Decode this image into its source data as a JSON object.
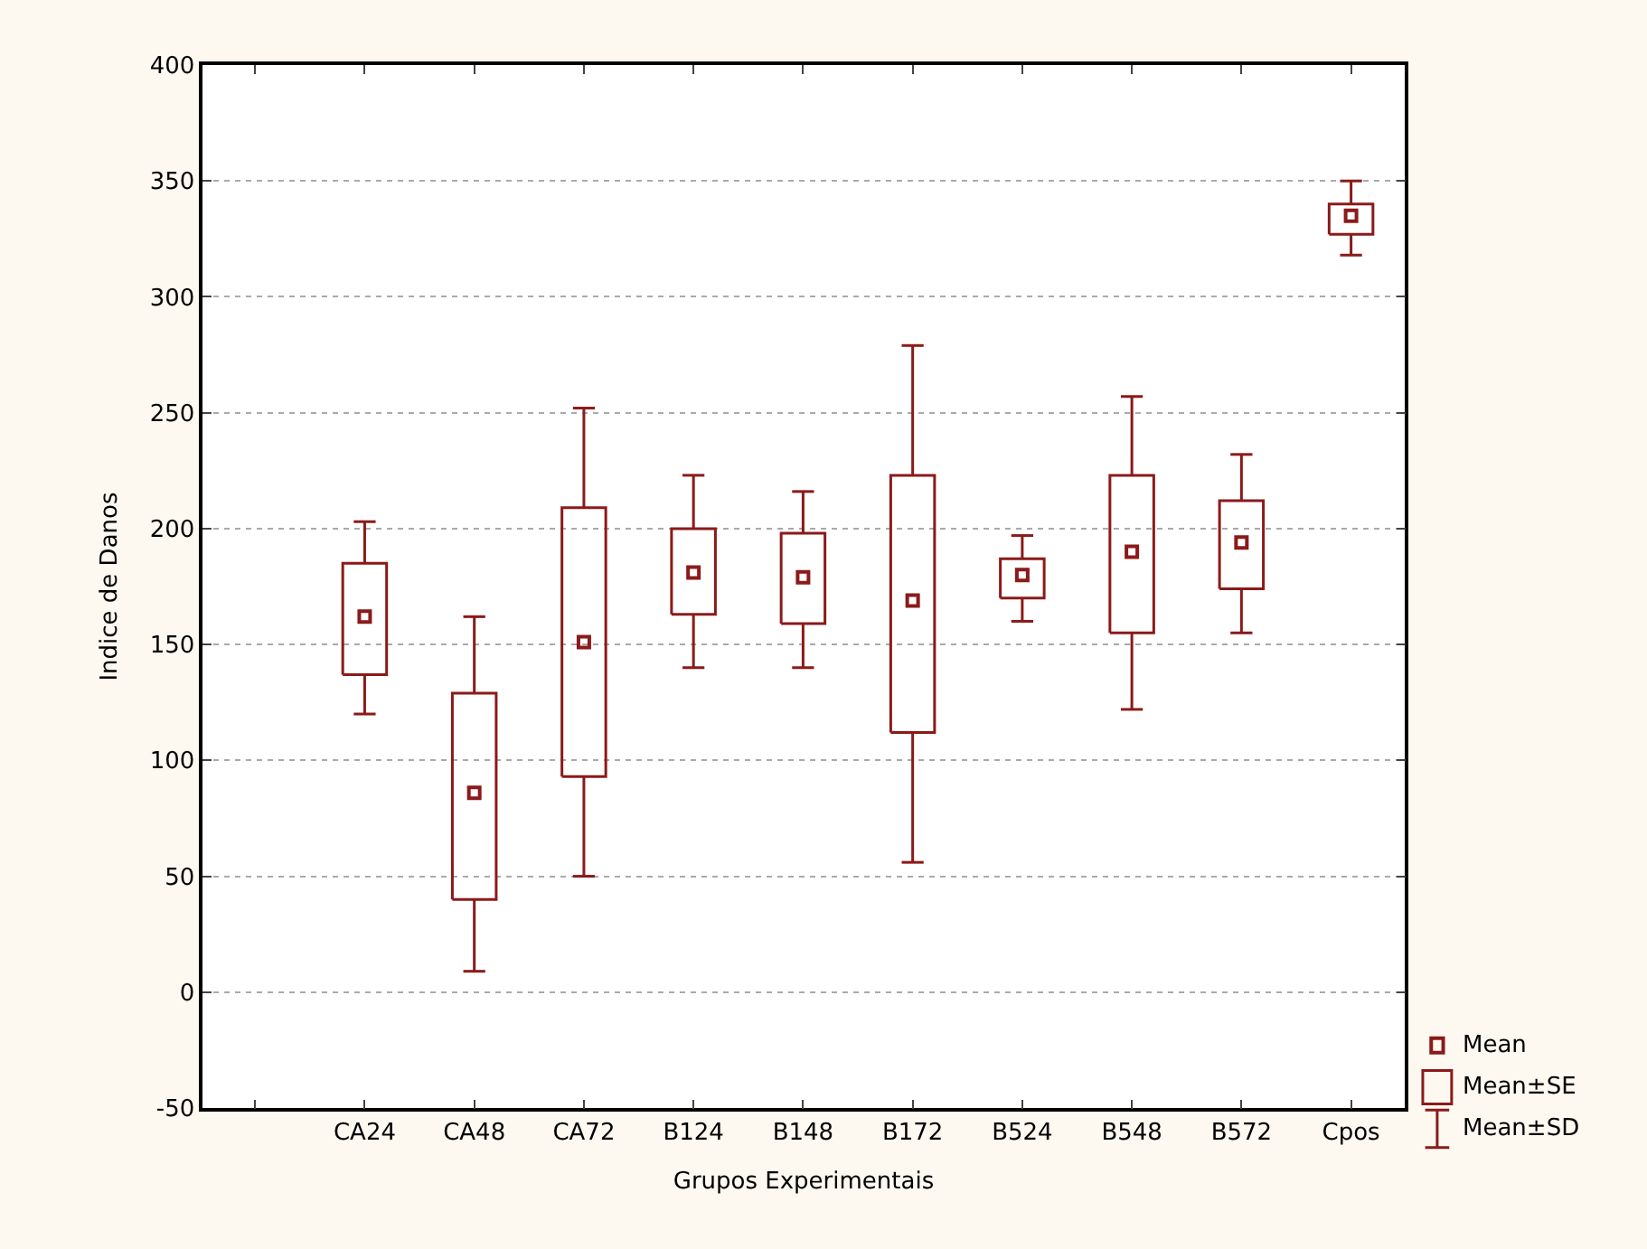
{
  "chart_data": {
    "type": "box",
    "xlabel": "Grupos Experimentais",
    "ylabel": "Indice de Danos",
    "categories": [
      "CA24",
      "CA48",
      "CA72",
      "B124",
      "B148",
      "B172",
      "B524",
      "B548",
      "B572",
      "Cpos"
    ],
    "ylim": [
      -50,
      400
    ],
    "yticks": [
      -50,
      0,
      50,
      100,
      150,
      200,
      250,
      300,
      350,
      400
    ],
    "grid": "y",
    "marker": "square",
    "annotations": [
      "Mean",
      "Mean±SE",
      "Mean±SD"
    ],
    "series": [
      {
        "color": "#8b1a1a",
        "boxes": [
          {
            "low": 120,
            "q1": 137,
            "mean": 162,
            "q3": 185,
            "high": 203
          },
          {
            "low": 9,
            "q1": 40,
            "mean": 86,
            "q3": 129,
            "high": 162
          },
          {
            "low": 50,
            "q1": 93,
            "mean": 151,
            "q3": 209,
            "high": 252
          },
          {
            "low": 140,
            "q1": 163,
            "mean": 181,
            "q3": 200,
            "high": 223
          },
          {
            "low": 140,
            "q1": 159,
            "mean": 179,
            "q3": 198,
            "high": 216
          },
          {
            "low": 56,
            "q1": 112,
            "mean": 169,
            "q3": 223,
            "high": 279
          },
          {
            "low": 160,
            "q1": 170,
            "mean": 180,
            "q3": 187,
            "high": 197
          },
          {
            "low": 122,
            "q1": 155,
            "mean": 190,
            "q3": 223,
            "high": 257
          },
          {
            "low": 155,
            "q1": 174,
            "mean": 194,
            "q3": 212,
            "high": 232
          },
          {
            "low": 318,
            "q1": 327,
            "mean": 335,
            "q3": 340,
            "high": 350
          }
        ]
      }
    ]
  }
}
